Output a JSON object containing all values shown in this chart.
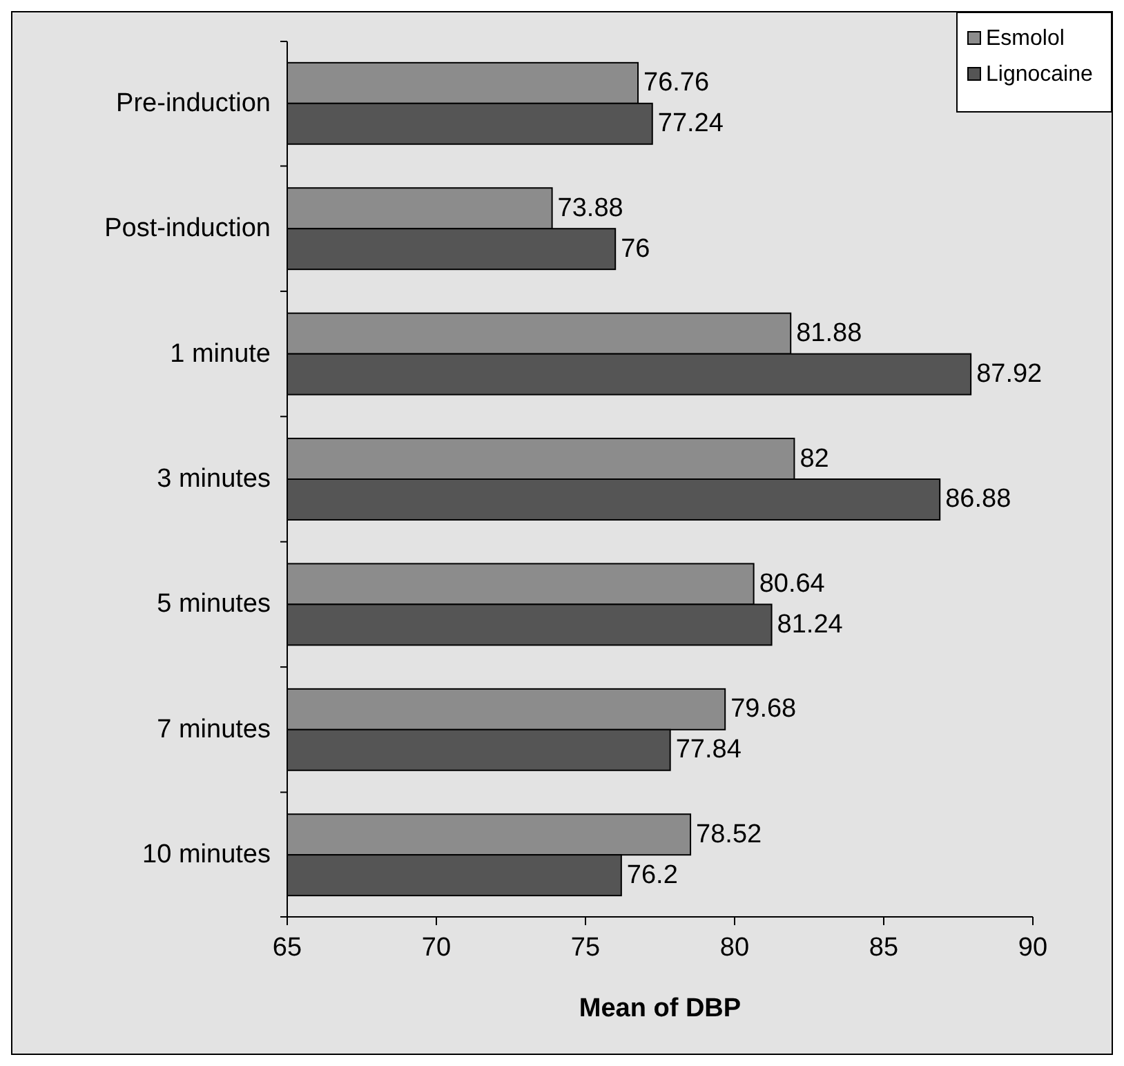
{
  "chart_data": {
    "type": "bar",
    "orientation": "horizontal",
    "xlabel": "Mean of DBP",
    "categories": [
      "Pre-induction",
      "Post-induction",
      "1 minute",
      "3 minutes",
      "5 minutes",
      "7 minutes",
      "10 minutes"
    ],
    "series": [
      {
        "name": "Esmolol",
        "color": "#8c8c8c",
        "values": [
          76.76,
          73.88,
          81.88,
          82,
          80.64,
          79.68,
          78.52
        ]
      },
      {
        "name": "Lignocaine",
        "color": "#555555",
        "values": [
          77.24,
          76,
          87.92,
          86.88,
          81.24,
          77.84,
          76.2
        ]
      }
    ],
    "xlim": [
      65,
      90
    ],
    "xticks": [
      65,
      70,
      75,
      80,
      85,
      90
    ],
    "data_labels": true,
    "legend": "top right",
    "grid": false
  }
}
